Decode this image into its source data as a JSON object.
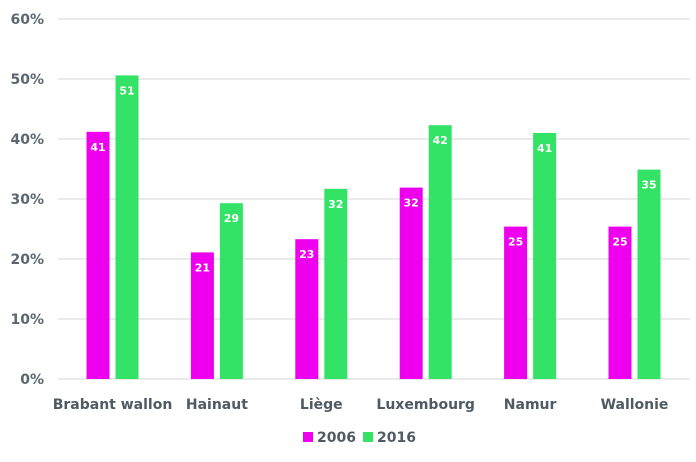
{
  "chart_data": {
    "type": "bar",
    "categories": [
      "Brabant wallon",
      "Hainaut",
      "Liège",
      "Luxembourg",
      "Namur",
      "Wallonie"
    ],
    "series": [
      {
        "name": "2006",
        "color": "#ee00ee",
        "values": [
          41,
          21,
          23,
          32,
          25,
          25
        ]
      },
      {
        "name": "2016",
        "color": "#33e366",
        "values": [
          51,
          29,
          32,
          42,
          41,
          35
        ]
      }
    ],
    "plot_values": [
      [
        41.2,
        21.1,
        23.3,
        31.9,
        25.4,
        25.4
      ],
      [
        50.6,
        29.3,
        31.7,
        42.3,
        41.0,
        34.9
      ]
    ],
    "yticks": [
      "0%",
      "10%",
      "20%",
      "30%",
      "40%",
      "50%",
      "60%"
    ],
    "ylim": [
      0,
      60
    ],
    "grid": true,
    "legend_position": "bottom-center"
  }
}
